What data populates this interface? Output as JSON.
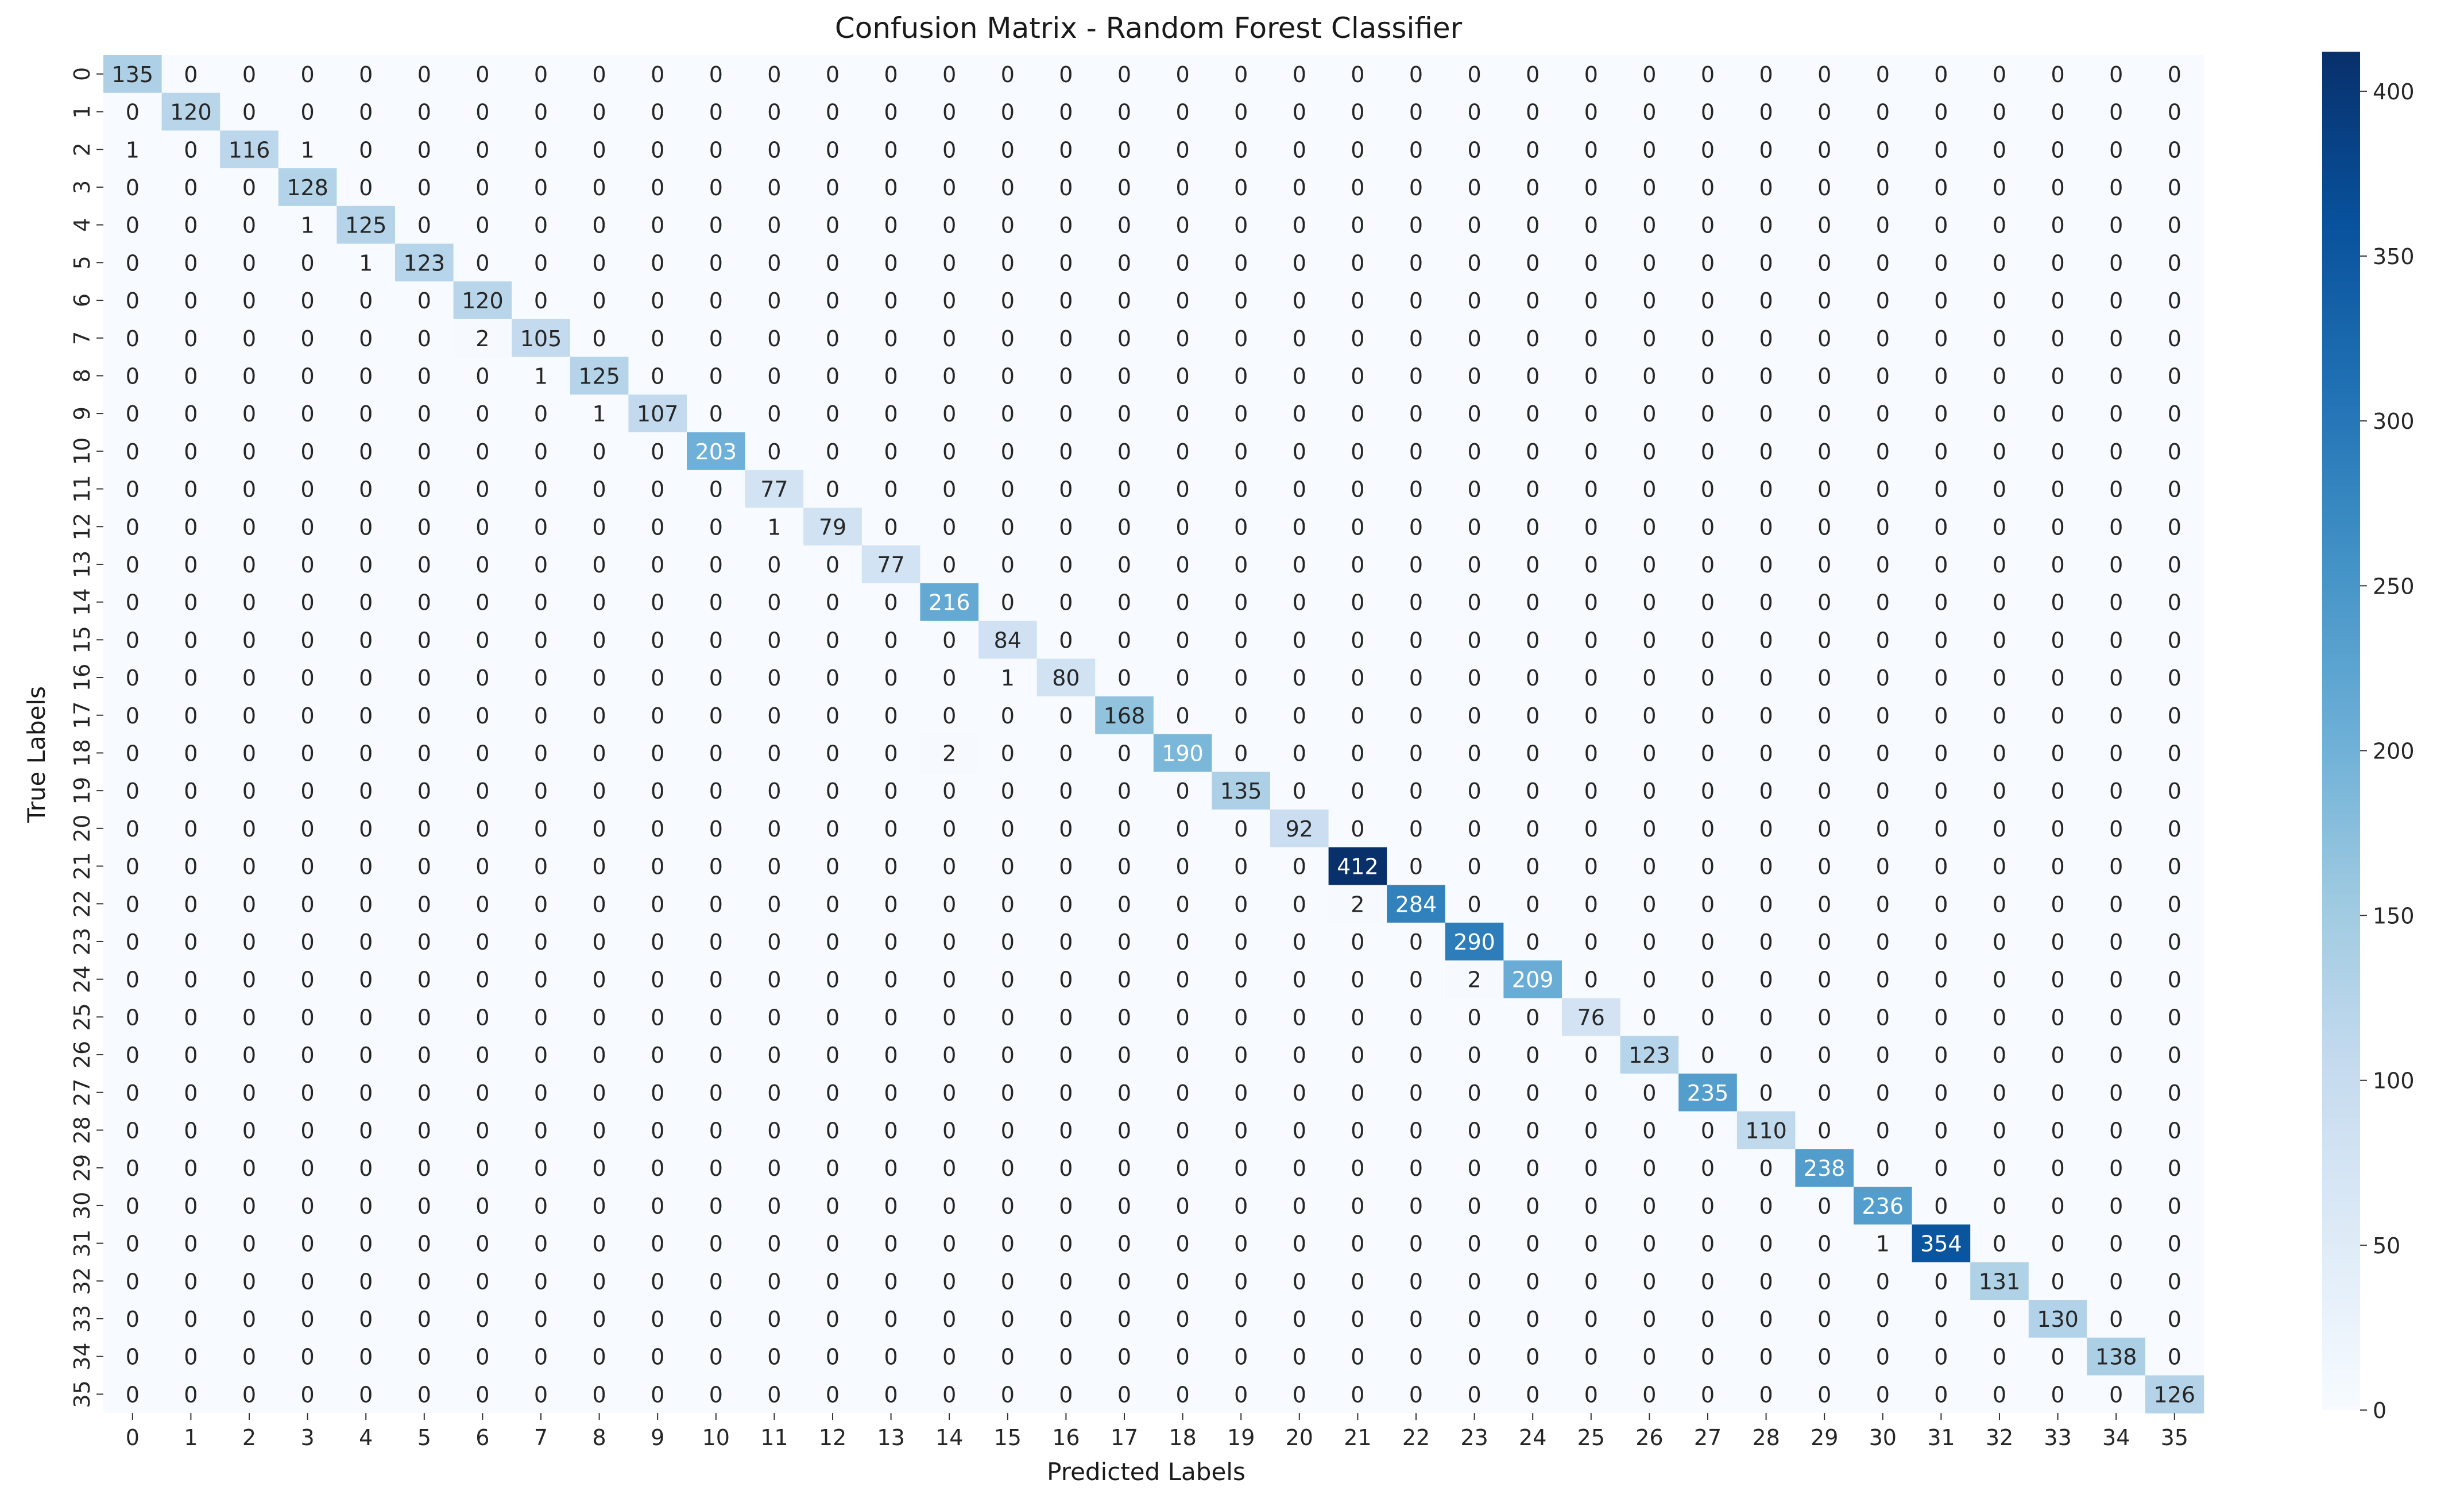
{
  "chart_data": {
    "type": "heatmap",
    "title": "Confusion Matrix - Random Forest Classifier",
    "xlabel": "Predicted Labels",
    "ylabel": "True Labels",
    "x_categories": [
      "0",
      "1",
      "2",
      "3",
      "4",
      "5",
      "6",
      "7",
      "8",
      "9",
      "10",
      "11",
      "12",
      "13",
      "14",
      "15",
      "16",
      "17",
      "18",
      "19",
      "20",
      "21",
      "22",
      "23",
      "24",
      "25",
      "26",
      "27",
      "28",
      "29",
      "30",
      "31",
      "32",
      "33",
      "34",
      "35"
    ],
    "y_categories": [
      "0",
      "1",
      "2",
      "3",
      "4",
      "5",
      "6",
      "7",
      "8",
      "9",
      "10",
      "11",
      "12",
      "13",
      "14",
      "15",
      "16",
      "17",
      "18",
      "19",
      "20",
      "21",
      "22",
      "23",
      "24",
      "25",
      "26",
      "27",
      "28",
      "29",
      "30",
      "31",
      "32",
      "33",
      "34",
      "35"
    ],
    "diagonal": [
      135,
      120,
      116,
      128,
      125,
      123,
      120,
      105,
      125,
      107,
      203,
      77,
      79,
      77,
      216,
      84,
      80,
      168,
      190,
      135,
      92,
      412,
      284,
      290,
      209,
      76,
      123,
      235,
      110,
      238,
      236,
      354,
      131,
      130,
      138,
      126
    ],
    "off_diagonal": [
      {
        "true": 2,
        "pred": 0,
        "value": 1
      },
      {
        "true": 2,
        "pred": 3,
        "value": 1
      },
      {
        "true": 4,
        "pred": 3,
        "value": 1
      },
      {
        "true": 5,
        "pred": 4,
        "value": 1
      },
      {
        "true": 7,
        "pred": 6,
        "value": 2
      },
      {
        "true": 8,
        "pred": 7,
        "value": 1
      },
      {
        "true": 9,
        "pred": 8,
        "value": 1
      },
      {
        "true": 12,
        "pred": 11,
        "value": 1
      },
      {
        "true": 16,
        "pred": 15,
        "value": 1
      },
      {
        "true": 18,
        "pred": 14,
        "value": 2
      },
      {
        "true": 22,
        "pred": 21,
        "value": 2
      },
      {
        "true": 24,
        "pred": 23,
        "value": 2
      },
      {
        "true": 31,
        "pred": 30,
        "value": 1
      }
    ],
    "colorbar": {
      "colormap": "Blues",
      "min": 0,
      "max": 412,
      "ticks": [
        0,
        50,
        100,
        150,
        200,
        250,
        300,
        350,
        400
      ]
    }
  }
}
